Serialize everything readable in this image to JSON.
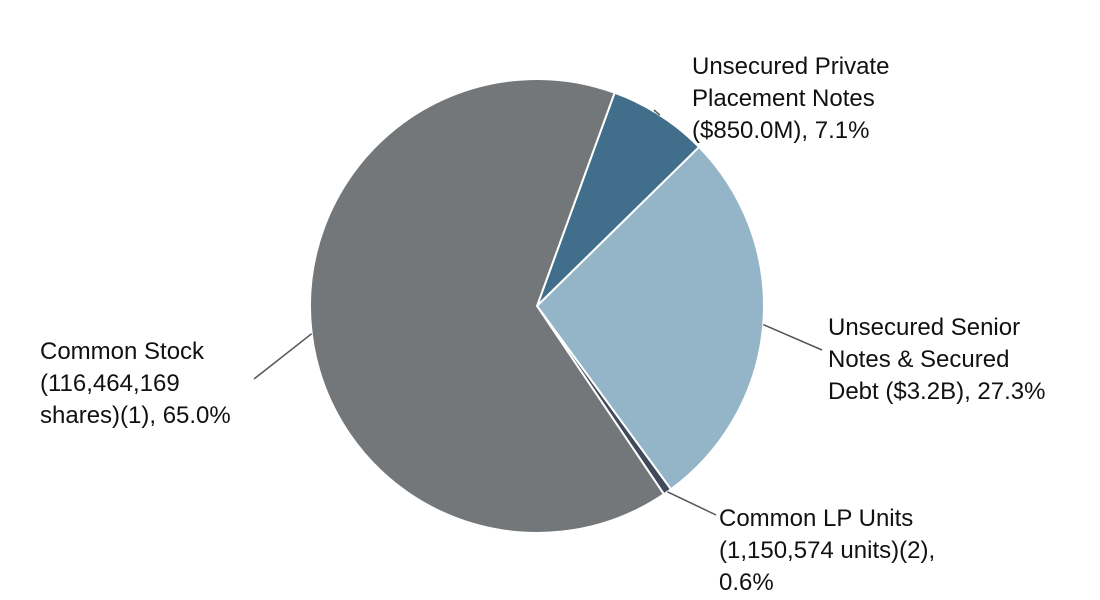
{
  "chart_data": {
    "type": "pie",
    "title": "",
    "slices": [
      {
        "label_lines": [
          "Unsecured Private",
          "Placement Notes",
          "($850.0M), 7.1%"
        ],
        "value": 7.1,
        "color": "#416f8b"
      },
      {
        "label_lines": [
          "Unsecured Senior",
          "Notes & Secured",
          "Debt ($3.2B), 27.3%"
        ],
        "value": 27.3,
        "color": "#94b5c8"
      },
      {
        "label_lines": [
          "Common LP Units",
          "(1,150,574 units)(2),",
          "0.6%"
        ],
        "value": 0.6,
        "color": "#3f4a5a"
      },
      {
        "label_lines": [
          "Common Stock",
          "(116,464,169",
          "shares)(1), 65.0%"
        ],
        "value": 65.0,
        "color": "#737779"
      }
    ]
  }
}
